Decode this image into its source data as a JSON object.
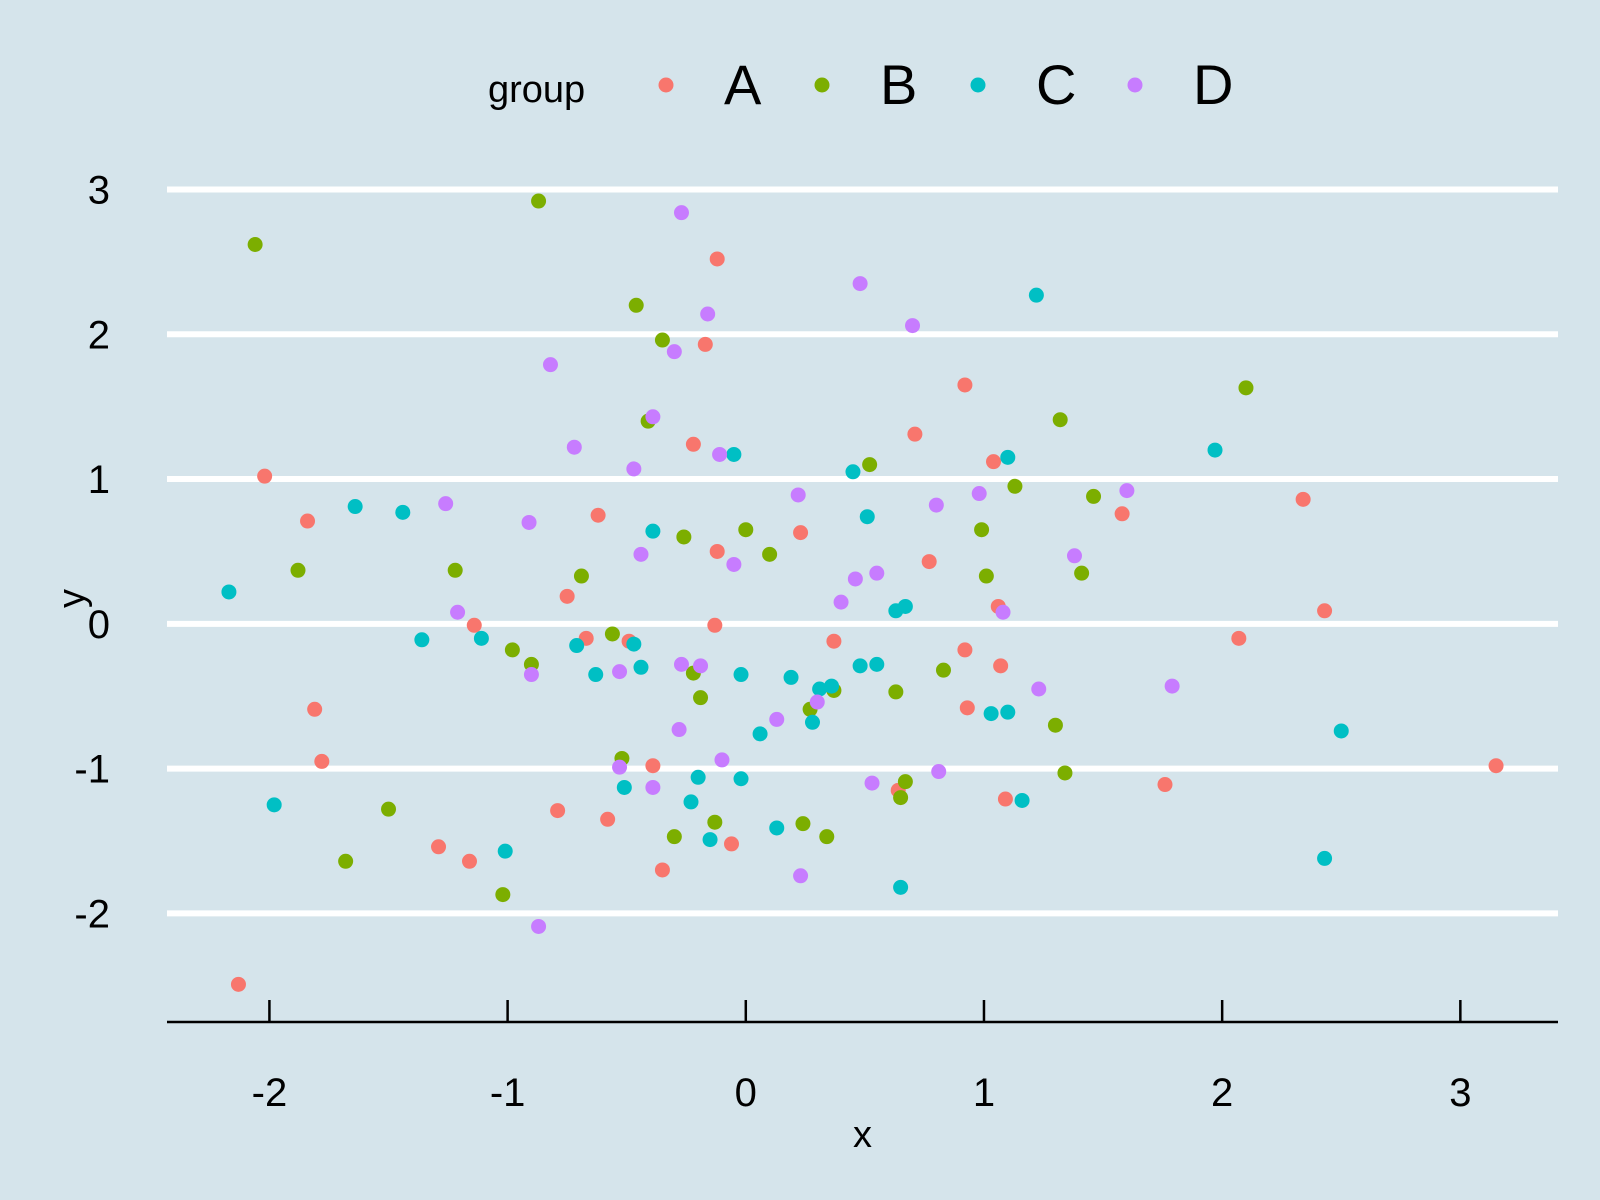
{
  "chart_data": {
    "type": "scatter",
    "title": "",
    "xlabel": "x",
    "ylabel": "y",
    "xlim": [
      -2.43,
      3.41
    ],
    "ylim": [
      -2.75,
      3.1
    ],
    "x_ticks": [
      -2,
      -1,
      0,
      1,
      2,
      3
    ],
    "y_ticks": [
      -2,
      -1,
      0,
      1,
      2,
      3
    ],
    "grid": "horizontal major lines, white",
    "background": "#d5e4eb",
    "legend": {
      "title": "group",
      "position": "top",
      "entries": [
        {
          "label": "A",
          "color": "#f8766d"
        },
        {
          "label": "B",
          "color": "#7cae00"
        },
        {
          "label": "C",
          "color": "#00bfc4"
        },
        {
          "label": "D",
          "color": "#c77cff"
        }
      ]
    },
    "series": [
      {
        "name": "A",
        "color": "#f8766d",
        "points": [
          [
            -2.13,
            -2.49
          ],
          [
            -2.02,
            1.02
          ],
          [
            -1.84,
            0.71
          ],
          [
            -1.81,
            -0.59
          ],
          [
            -1.78,
            -0.95
          ],
          [
            -1.29,
            -1.54
          ],
          [
            -1.16,
            -1.64
          ],
          [
            -1.14,
            -0.01
          ],
          [
            -0.79,
            -1.29
          ],
          [
            -0.75,
            0.19
          ],
          [
            -0.67,
            -0.1
          ],
          [
            -0.62,
            0.75
          ],
          [
            -0.58,
            -1.35
          ],
          [
            -0.49,
            -0.12
          ],
          [
            -0.39,
            -0.98
          ],
          [
            -0.35,
            -1.7
          ],
          [
            -0.22,
            1.24
          ],
          [
            -0.17,
            1.93
          ],
          [
            -0.13,
            -0.01
          ],
          [
            -0.12,
            0.5
          ],
          [
            -0.12,
            2.52
          ],
          [
            -0.06,
            -1.52
          ],
          [
            0.23,
            0.63
          ],
          [
            0.37,
            -0.12
          ],
          [
            0.64,
            -1.15
          ],
          [
            0.71,
            1.31
          ],
          [
            0.77,
            0.43
          ],
          [
            0.92,
            -0.18
          ],
          [
            0.92,
            1.65
          ],
          [
            0.93,
            -0.58
          ],
          [
            1.04,
            1.12
          ],
          [
            1.06,
            0.12
          ],
          [
            1.07,
            -0.29
          ],
          [
            1.09,
            -1.21
          ],
          [
            1.58,
            0.76
          ],
          [
            1.76,
            -1.11
          ],
          [
            2.07,
            -0.1
          ],
          [
            2.34,
            0.86
          ],
          [
            2.43,
            0.09
          ],
          [
            3.15,
            -0.98
          ]
        ]
      },
      {
        "name": "B",
        "color": "#7cae00",
        "points": [
          [
            -2.06,
            2.62
          ],
          [
            -1.88,
            0.37
          ],
          [
            -1.68,
            -1.64
          ],
          [
            -1.5,
            -1.28
          ],
          [
            -1.22,
            0.37
          ],
          [
            -1.02,
            -1.87
          ],
          [
            -0.98,
            -0.18
          ],
          [
            -0.9,
            -0.28
          ],
          [
            -0.87,
            2.92
          ],
          [
            -0.69,
            0.33
          ],
          [
            -0.56,
            -0.07
          ],
          [
            -0.52,
            -0.93
          ],
          [
            -0.46,
            2.2
          ],
          [
            -0.41,
            1.4
          ],
          [
            -0.35,
            1.96
          ],
          [
            -0.3,
            -1.47
          ],
          [
            -0.26,
            0.6
          ],
          [
            -0.22,
            -0.34
          ],
          [
            -0.19,
            -0.51
          ],
          [
            -0.13,
            -1.37
          ],
          [
            0.0,
            0.65
          ],
          [
            0.1,
            0.48
          ],
          [
            0.24,
            -1.38
          ],
          [
            0.27,
            -0.59
          ],
          [
            0.34,
            -1.47
          ],
          [
            0.37,
            -0.46
          ],
          [
            0.52,
            1.1
          ],
          [
            0.63,
            -0.47
          ],
          [
            0.65,
            -1.2
          ],
          [
            0.67,
            -1.09
          ],
          [
            0.83,
            -0.32
          ],
          [
            0.99,
            0.65
          ],
          [
            1.01,
            0.33
          ],
          [
            1.13,
            0.95
          ],
          [
            1.3,
            -0.7
          ],
          [
            1.32,
            1.41
          ],
          [
            1.34,
            -1.03
          ],
          [
            1.41,
            0.35
          ],
          [
            1.46,
            0.88
          ],
          [
            2.1,
            1.63
          ]
        ]
      },
      {
        "name": "C",
        "color": "#00bfc4",
        "points": [
          [
            -2.17,
            0.22
          ],
          [
            -1.98,
            -1.25
          ],
          [
            -1.64,
            0.81
          ],
          [
            -1.44,
            0.77
          ],
          [
            -1.36,
            -0.11
          ],
          [
            -1.11,
            -0.1
          ],
          [
            -1.01,
            -1.57
          ],
          [
            -0.71,
            -0.15
          ],
          [
            -0.63,
            -0.35
          ],
          [
            -0.51,
            -1.13
          ],
          [
            -0.47,
            -0.14
          ],
          [
            -0.44,
            -0.3
          ],
          [
            -0.39,
            0.64
          ],
          [
            -0.23,
            -1.23
          ],
          [
            -0.2,
            -1.06
          ],
          [
            -0.15,
            -1.49
          ],
          [
            -0.05,
            1.17
          ],
          [
            -0.02,
            -0.35
          ],
          [
            -0.02,
            -1.07
          ],
          [
            0.06,
            -0.76
          ],
          [
            0.13,
            -1.41
          ],
          [
            0.19,
            -0.37
          ],
          [
            0.28,
            -0.68
          ],
          [
            0.31,
            -0.45
          ],
          [
            0.36,
            -0.43
          ],
          [
            0.45,
            1.05
          ],
          [
            0.48,
            -0.29
          ],
          [
            0.51,
            0.74
          ],
          [
            0.55,
            -0.28
          ],
          [
            0.63,
            0.09
          ],
          [
            0.65,
            -1.82
          ],
          [
            0.67,
            0.12
          ],
          [
            1.03,
            -0.62
          ],
          [
            1.1,
            -0.61
          ],
          [
            1.1,
            1.15
          ],
          [
            1.16,
            -1.22
          ],
          [
            1.22,
            2.27
          ],
          [
            1.97,
            1.2
          ],
          [
            2.43,
            -1.62
          ],
          [
            2.5,
            -0.74
          ]
        ]
      },
      {
        "name": "D",
        "color": "#c77cff",
        "points": [
          [
            -1.26,
            0.83
          ],
          [
            -1.21,
            0.08
          ],
          [
            -0.91,
            0.7
          ],
          [
            -0.9,
            -0.35
          ],
          [
            -0.87,
            -2.09
          ],
          [
            -0.82,
            1.79
          ],
          [
            -0.72,
            1.22
          ],
          [
            -0.53,
            -0.99
          ],
          [
            -0.53,
            -0.33
          ],
          [
            -0.47,
            1.07
          ],
          [
            -0.44,
            0.48
          ],
          [
            -0.39,
            1.43
          ],
          [
            -0.39,
            -1.13
          ],
          [
            -0.3,
            1.88
          ],
          [
            -0.28,
            -0.73
          ],
          [
            -0.27,
            2.84
          ],
          [
            -0.27,
            -0.28
          ],
          [
            -0.19,
            -0.29
          ],
          [
            -0.16,
            2.14
          ],
          [
            -0.11,
            1.17
          ],
          [
            -0.1,
            -0.94
          ],
          [
            -0.05,
            0.41
          ],
          [
            0.13,
            -0.66
          ],
          [
            0.22,
            0.89
          ],
          [
            0.23,
            -1.74
          ],
          [
            0.3,
            -0.54
          ],
          [
            0.4,
            0.15
          ],
          [
            0.46,
            0.31
          ],
          [
            0.48,
            2.35
          ],
          [
            0.53,
            -1.1
          ],
          [
            0.55,
            0.35
          ],
          [
            0.7,
            2.06
          ],
          [
            0.8,
            0.82
          ],
          [
            0.81,
            -1.02
          ],
          [
            0.98,
            0.9
          ],
          [
            1.08,
            0.08
          ],
          [
            1.23,
            -0.45
          ],
          [
            1.38,
            0.47
          ],
          [
            1.6,
            0.92
          ],
          [
            1.79,
            -0.43
          ]
        ]
      }
    ]
  }
}
